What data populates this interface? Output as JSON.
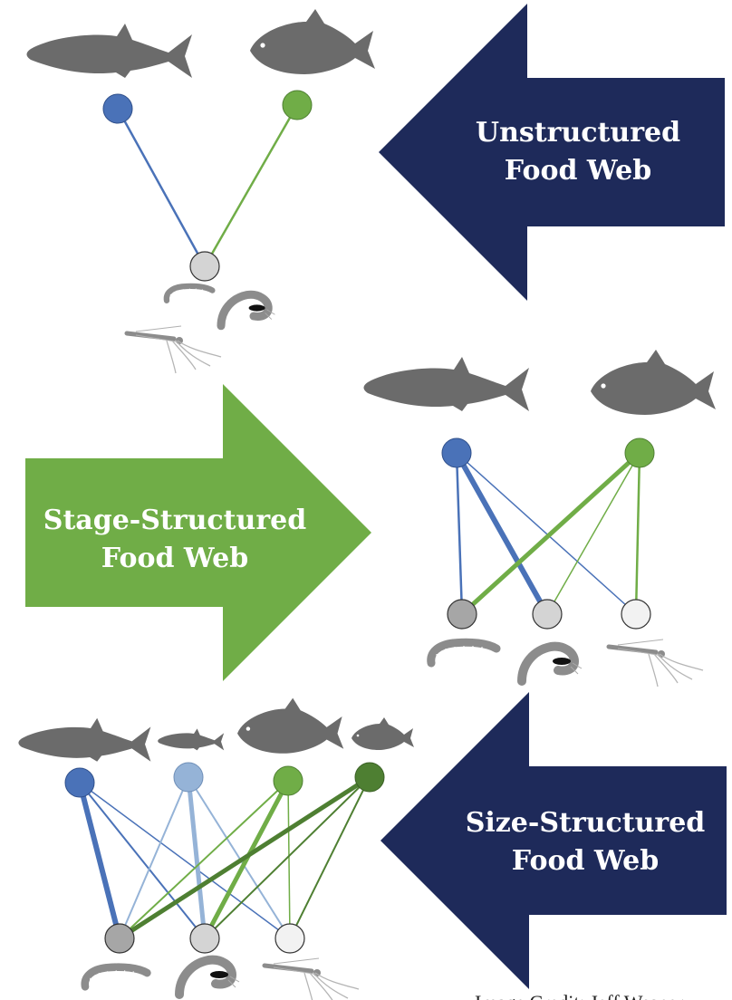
{
  "arrows": {
    "unstructured": {
      "line1": "Unstructured",
      "line2": "Food Web",
      "color": "#1e2a5a"
    },
    "stage": {
      "line1": "Stage-Structured",
      "line2": "Food Web",
      "color": "#70ad47"
    },
    "size": {
      "line1": "Size-Structured",
      "line2": "Food Web",
      "color": "#1e2a5a"
    }
  },
  "credit": "Image Credit: Jeff Wesner",
  "colors": {
    "fish_silhouette": "#6b6b6b",
    "blue_node": "#4a72b8",
    "light_blue_node": "#95b3d7",
    "green_node": "#70ad47",
    "dark_green_node": "#4e7f32",
    "larva_node": "#a6a6a6",
    "pupa_node": "#d4d4d4",
    "adult_node": "#f2f2f2"
  },
  "icons": {
    "predators": [
      "trout-icon",
      "carp-icon"
    ],
    "prey": [
      "midge-larva-icon",
      "midge-pupa-icon",
      "midge-adult-icon"
    ]
  }
}
